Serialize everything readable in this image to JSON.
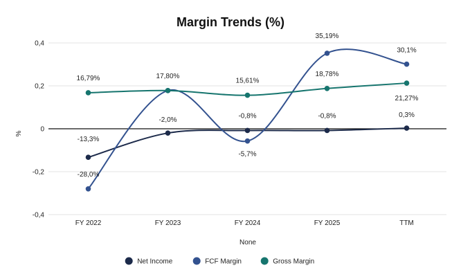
{
  "chart_data": {
    "type": "line",
    "title": "Margin Trends (%)",
    "xlabel": "None",
    "ylabel": "%",
    "categories": [
      "FY 2022",
      "FY 2023",
      "FY 2024",
      "FY 2025",
      "TTM"
    ],
    "ylim": [
      -0.4,
      0.4
    ],
    "yticks": [
      0.4,
      0.2,
      0,
      -0.2,
      -0.4
    ],
    "ytick_labels": [
      "0,4",
      "0,2",
      "0",
      "-0,2",
      "-0,4"
    ],
    "grid": true,
    "zero_line": true,
    "legend_position": "bottom",
    "series": [
      {
        "name": "Net Income",
        "color": "#1c2a4a",
        "values": [
          -0.133,
          -0.02,
          -0.008,
          -0.008,
          0.003
        ],
        "labels": [
          "-13,3%",
          "-2,0%",
          "-0,8%",
          "-0,8%",
          "0,3%"
        ]
      },
      {
        "name": "FCF Margin",
        "color": "#33528f",
        "values": [
          -0.28,
          0.178,
          -0.057,
          0.352,
          0.301
        ],
        "labels": [
          "-28,0%",
          "17,80%",
          "-5,7%",
          "35,19%",
          "30,1%"
        ]
      },
      {
        "name": "Gross Margin",
        "color": "#16756e",
        "values": [
          0.1679,
          0.178,
          0.1561,
          0.1878,
          0.2127
        ],
        "labels": [
          "16,79%",
          "17,80%",
          "15,61%",
          "18,78%",
          "21,27%"
        ]
      }
    ]
  }
}
